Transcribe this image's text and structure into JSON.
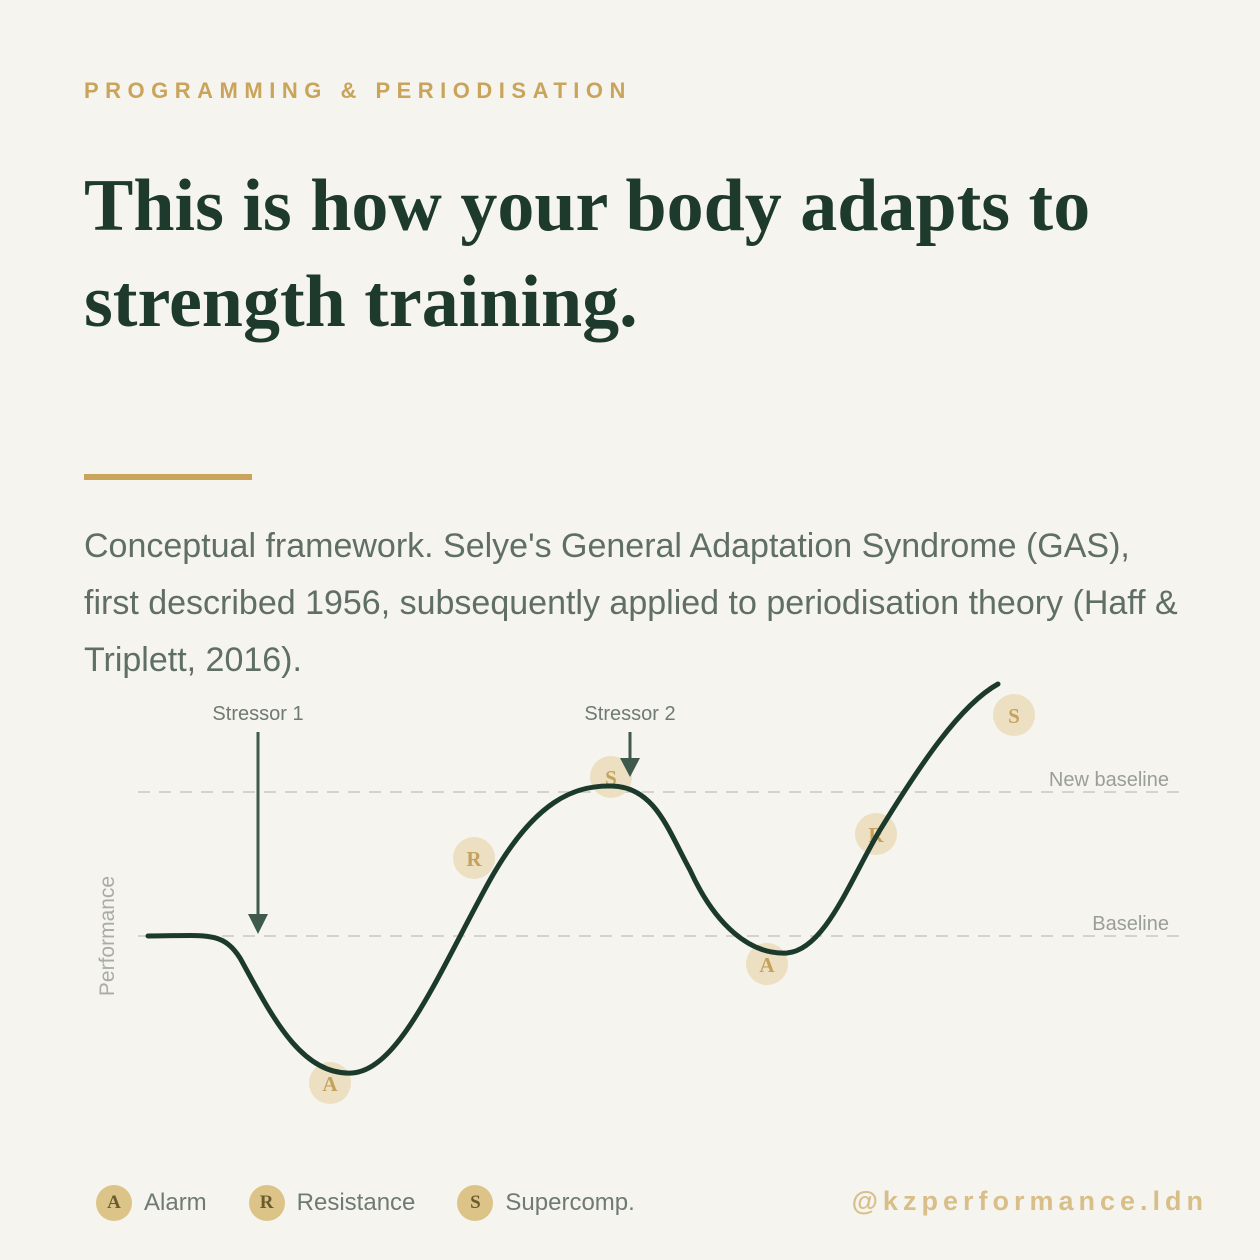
{
  "eyebrow": "PROGRAMMING & PERIODISATION",
  "headline": "This is how your body adapts to strength training.",
  "description": "Conceptual framework. Selye's General Adaptation Syndrome (GAS), first described 1956, subsequently applied to periodisation theory (Haff & Triplett, 2016).",
  "diagram": {
    "y_axis_label": "Performance",
    "reference_lines": [
      "New baseline",
      "Baseline"
    ],
    "stressors": [
      "Stressor 1",
      "Stressor 2"
    ],
    "phase_markers": [
      "A",
      "R",
      "S",
      "A",
      "R",
      "S"
    ]
  },
  "legend": [
    {
      "letter": "A",
      "label": "Alarm"
    },
    {
      "letter": "R",
      "label": "Resistance"
    },
    {
      "letter": "S",
      "label": "Supercomp."
    }
  ],
  "handle": "@kzperformance.ldn",
  "colors": {
    "background": "#f6f4ee",
    "headline": "#1d3a2c",
    "accent_gold": "#c9a45a",
    "curve": "#1c3a2c",
    "body_text": "#5f6f66"
  }
}
